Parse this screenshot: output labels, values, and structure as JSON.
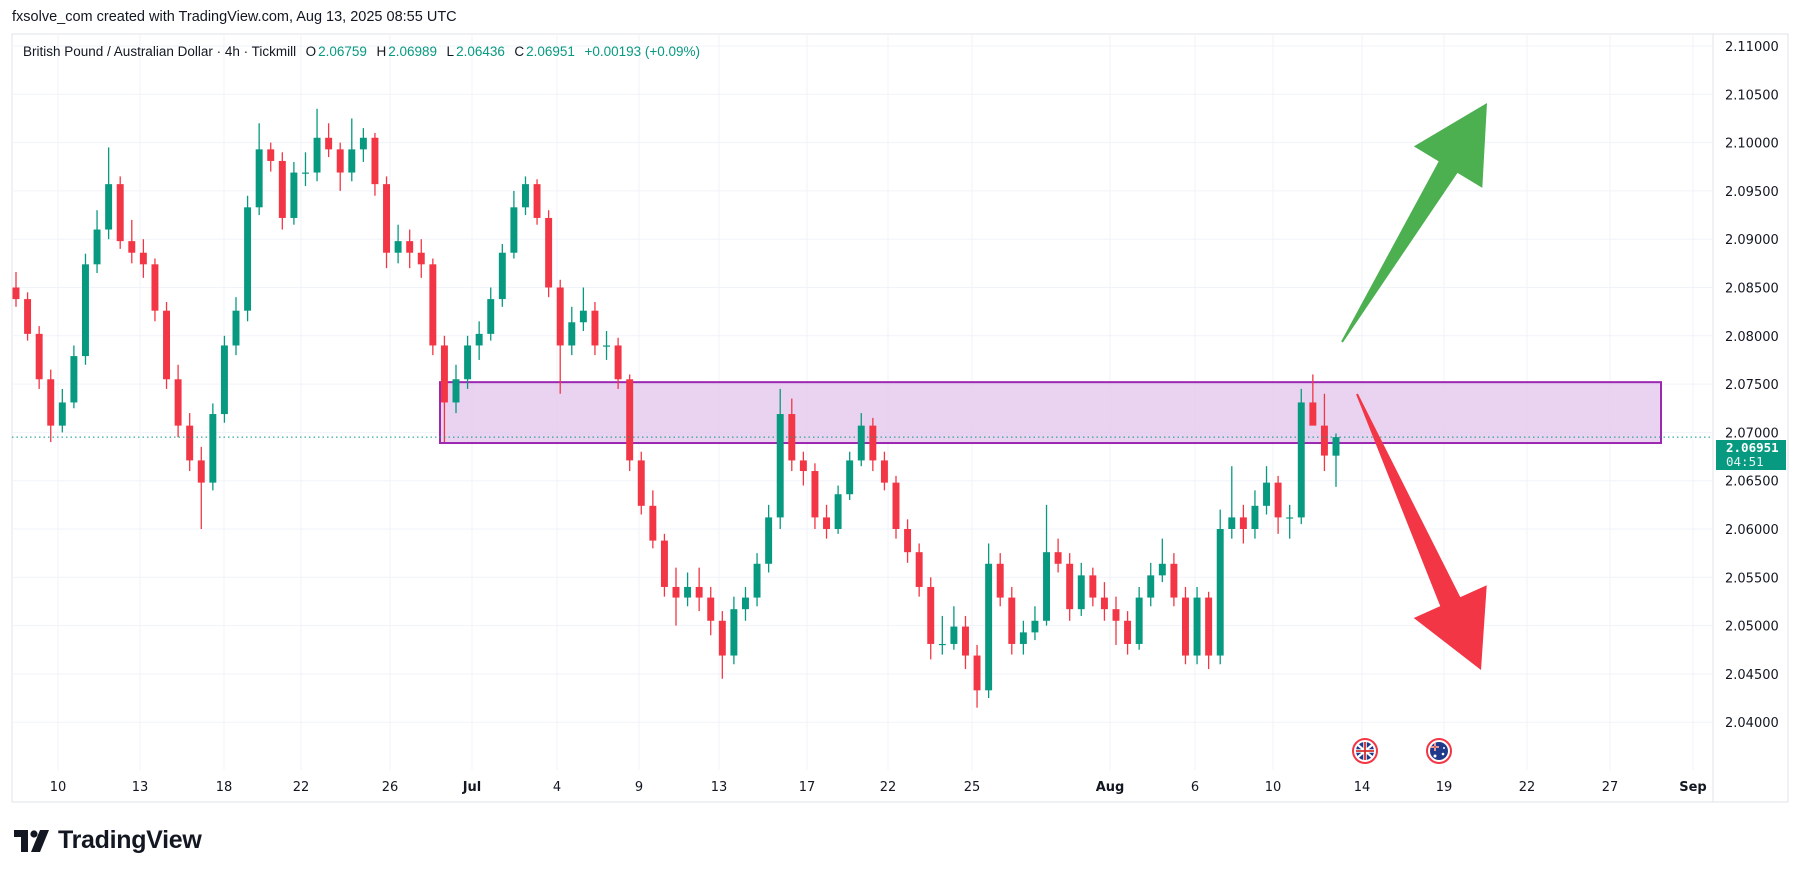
{
  "header": {
    "attribution": "fxsolve_com created with TradingView.com, Aug 13, 2025 08:55 UTC"
  },
  "legend": {
    "symbol": "British Pound / Australian Dollar · 4h · Tickmill",
    "o_label": "O",
    "o": "2.06759",
    "h_label": "H",
    "h": "2.06989",
    "l_label": "L",
    "l": "2.06436",
    "c_label": "C",
    "c": "2.06951",
    "change": "+0.00193 (+0.09%)"
  },
  "price_badge": {
    "price": "2.06951",
    "countdown": "04:51"
  },
  "logo": {
    "text": "TradingView"
  },
  "colors": {
    "up": "#089981",
    "down": "#f23645",
    "zone_fill": "#e1c4ec",
    "zone_border": "#9c27b0",
    "arrow_up": "#4caf50",
    "arrow_down": "#f23645",
    "grid": "#f0f3fa"
  },
  "chart_data": {
    "type": "candlestick",
    "title": "British Pound / Australian Dollar · 4h · Tickmill",
    "ylim": [
      2.036,
      2.112
    ],
    "y_ticks": [
      "2.11000",
      "2.10500",
      "2.10000",
      "2.09500",
      "2.09000",
      "2.08500",
      "2.08000",
      "2.07500",
      "2.07000",
      "2.06500",
      "2.06000",
      "2.05500",
      "2.05000",
      "2.04500",
      "2.04000"
    ],
    "x_ticks": [
      {
        "label": "10",
        "bold": false
      },
      {
        "label": "13",
        "bold": false
      },
      {
        "label": "18",
        "bold": false
      },
      {
        "label": "22",
        "bold": false
      },
      {
        "label": "26",
        "bold": false
      },
      {
        "label": "Jul",
        "bold": true
      },
      {
        "label": "4",
        "bold": false
      },
      {
        "label": "9",
        "bold": false
      },
      {
        "label": "13",
        "bold": false
      },
      {
        "label": "17",
        "bold": false
      },
      {
        "label": "22",
        "bold": false
      },
      {
        "label": "25",
        "bold": false
      },
      {
        "label": "Aug",
        "bold": true
      },
      {
        "label": "6",
        "bold": false
      },
      {
        "label": "10",
        "bold": false
      },
      {
        "label": "14",
        "bold": false
      },
      {
        "label": "19",
        "bold": false
      },
      {
        "label": "22",
        "bold": false
      },
      {
        "label": "27",
        "bold": false
      },
      {
        "label": "Sep",
        "bold": true
      }
    ],
    "grid": true,
    "last_price": 2.06951,
    "resistance_zone": {
      "top": 2.0752,
      "bottom": 2.0689
    },
    "annotations": [
      "green up arrow (bullish scenario)",
      "red down arrow (bearish scenario)"
    ],
    "events": [
      "GBP flag",
      "AUD flag"
    ],
    "candles": [
      [
        2.085,
        2.0866,
        2.083,
        2.0838
      ],
      [
        2.0838,
        2.0845,
        2.0795,
        2.0802
      ],
      [
        2.0802,
        2.081,
        2.0745,
        2.0755
      ],
      [
        2.0755,
        2.0765,
        2.069,
        2.0707
      ],
      [
        2.0707,
        2.0745,
        2.07,
        2.0731
      ],
      [
        2.0731,
        2.079,
        2.0725,
        2.0779
      ],
      [
        2.0779,
        2.0885,
        2.077,
        2.0874
      ],
      [
        2.0874,
        2.093,
        2.0865,
        2.091
      ],
      [
        2.091,
        2.0995,
        2.09,
        2.0957
      ],
      [
        2.0957,
        2.0965,
        2.089,
        2.0898
      ],
      [
        2.0898,
        2.092,
        2.0875,
        2.0886
      ],
      [
        2.0886,
        2.09,
        2.086,
        2.0874
      ],
      [
        2.0874,
        2.088,
        2.0815,
        2.0826
      ],
      [
        2.0826,
        2.0835,
        2.0745,
        2.0755
      ],
      [
        2.0755,
        2.077,
        2.0695,
        2.0707
      ],
      [
        2.0707,
        2.072,
        2.066,
        2.0671
      ],
      [
        2.0671,
        2.0685,
        2.06,
        2.0648
      ],
      [
        2.0648,
        2.073,
        2.064,
        2.0719
      ],
      [
        2.0719,
        2.08,
        2.071,
        2.079
      ],
      [
        2.079,
        2.084,
        2.078,
        2.0826
      ],
      [
        2.0826,
        2.0945,
        2.0815,
        2.0933
      ],
      [
        2.0933,
        2.102,
        2.0925,
        2.0993
      ],
      [
        2.0993,
        2.1,
        2.097,
        2.0981
      ],
      [
        2.0981,
        2.099,
        2.091,
        2.0922
      ],
      [
        2.0922,
        2.098,
        2.0915,
        2.0969
      ],
      [
        2.0969,
        2.099,
        2.0955,
        2.0969
      ],
      [
        2.0969,
        2.1035,
        2.096,
        2.1005
      ],
      [
        2.1005,
        2.102,
        2.0985,
        2.0993
      ],
      [
        2.0993,
        2.1,
        2.095,
        2.0969
      ],
      [
        2.0969,
        2.1025,
        2.096,
        2.0993
      ],
      [
        2.0993,
        2.1015,
        2.098,
        2.1005
      ],
      [
        2.1005,
        2.101,
        2.0945,
        2.0957
      ],
      [
        2.0957,
        2.0965,
        2.087,
        2.0886
      ],
      [
        2.0886,
        2.0915,
        2.0875,
        2.0898
      ],
      [
        2.0898,
        2.091,
        2.087,
        2.0886
      ],
      [
        2.0886,
        2.09,
        2.086,
        2.0874
      ],
      [
        2.0874,
        2.088,
        2.078,
        2.079
      ],
      [
        2.079,
        2.08,
        2.069,
        2.0731
      ],
      [
        2.0731,
        2.077,
        2.072,
        2.0755
      ],
      [
        2.0755,
        2.08,
        2.0745,
        2.079
      ],
      [
        2.079,
        2.0815,
        2.0775,
        2.0802
      ],
      [
        2.0802,
        2.085,
        2.0795,
        2.0838
      ],
      [
        2.0838,
        2.0895,
        2.083,
        2.0886
      ],
      [
        2.0886,
        2.095,
        2.088,
        2.0933
      ],
      [
        2.0933,
        2.0965,
        2.0925,
        2.0957
      ],
      [
        2.0957,
        2.0962,
        2.0915,
        2.0922
      ],
      [
        2.0922,
        2.093,
        2.084,
        2.085
      ],
      [
        2.085,
        2.0858,
        2.074,
        2.079
      ],
      [
        2.079,
        2.083,
        2.078,
        2.0814
      ],
      [
        2.0814,
        2.085,
        2.0805,
        2.0826
      ],
      [
        2.0826,
        2.0835,
        2.078,
        2.079
      ],
      [
        2.079,
        2.0805,
        2.0775,
        2.079
      ],
      [
        2.079,
        2.0798,
        2.0745,
        2.0755
      ],
      [
        2.0755,
        2.076,
        2.066,
        2.0671
      ],
      [
        2.0671,
        2.068,
        2.0615,
        2.0624
      ],
      [
        2.0624,
        2.064,
        2.058,
        2.0588
      ],
      [
        2.0588,
        2.0595,
        2.053,
        2.054
      ],
      [
        2.054,
        2.056,
        2.05,
        2.0529
      ],
      [
        2.0529,
        2.0555,
        2.052,
        2.054
      ],
      [
        2.054,
        2.056,
        2.0515,
        2.0529
      ],
      [
        2.0529,
        2.054,
        2.049,
        2.0505
      ],
      [
        2.0505,
        2.0515,
        2.0445,
        2.0469
      ],
      [
        2.0469,
        2.053,
        2.046,
        2.0517
      ],
      [
        2.0517,
        2.054,
        2.0505,
        2.0529
      ],
      [
        2.0529,
        2.0575,
        2.052,
        2.0564
      ],
      [
        2.0564,
        2.0625,
        2.0555,
        2.0612
      ],
      [
        2.0612,
        2.0745,
        2.06,
        2.0719
      ],
      [
        2.0719,
        2.0735,
        2.066,
        2.0671
      ],
      [
        2.0671,
        2.068,
        2.0645,
        2.066
      ],
      [
        2.066,
        2.0668,
        2.06,
        2.0612
      ],
      [
        2.0612,
        2.0625,
        2.059,
        2.06
      ],
      [
        2.06,
        2.0645,
        2.0595,
        2.0636
      ],
      [
        2.0636,
        2.068,
        2.063,
        2.0671
      ],
      [
        2.0671,
        2.072,
        2.0665,
        2.0707
      ],
      [
        2.0707,
        2.0715,
        2.066,
        2.0671
      ],
      [
        2.0671,
        2.068,
        2.064,
        2.0648
      ],
      [
        2.0648,
        2.0655,
        2.059,
        2.06
      ],
      [
        2.06,
        2.061,
        2.0565,
        2.0576
      ],
      [
        2.0576,
        2.0585,
        2.053,
        2.054
      ],
      [
        2.054,
        2.055,
        2.0465,
        2.0481
      ],
      [
        2.0481,
        2.051,
        2.047,
        2.0481
      ],
      [
        2.0481,
        2.052,
        2.0475,
        2.0499
      ],
      [
        2.0499,
        2.051,
        2.0455,
        2.0469
      ],
      [
        2.0469,
        2.048,
        2.0415,
        2.0433
      ],
      [
        2.0433,
        2.0585,
        2.0425,
        2.0564
      ],
      [
        2.0564,
        2.0575,
        2.052,
        2.0529
      ],
      [
        2.0529,
        2.054,
        2.047,
        2.0481
      ],
      [
        2.0481,
        2.0505,
        2.047,
        2.0493
      ],
      [
        2.0493,
        2.052,
        2.0485,
        2.0505
      ],
      [
        2.0505,
        2.0625,
        2.05,
        2.0576
      ],
      [
        2.0576,
        2.059,
        2.0555,
        2.0564
      ],
      [
        2.0564,
        2.0575,
        2.0505,
        2.0517
      ],
      [
        2.0517,
        2.0565,
        2.051,
        2.0552
      ],
      [
        2.0552,
        2.056,
        2.052,
        2.0529
      ],
      [
        2.0529,
        2.0545,
        2.0505,
        2.0517
      ],
      [
        2.0517,
        2.053,
        2.048,
        2.0505
      ],
      [
        2.0505,
        2.0515,
        2.047,
        2.0481
      ],
      [
        2.0481,
        2.054,
        2.0475,
        2.0529
      ],
      [
        2.0529,
        2.0565,
        2.052,
        2.0552
      ],
      [
        2.0552,
        2.059,
        2.0545,
        2.0564
      ],
      [
        2.0564,
        2.0575,
        2.052,
        2.0529
      ],
      [
        2.0529,
        2.054,
        2.046,
        2.0469
      ],
      [
        2.0469,
        2.054,
        2.046,
        2.0529
      ],
      [
        2.0529,
        2.0535,
        2.0455,
        2.0469
      ],
      [
        2.0469,
        2.062,
        2.046,
        2.06
      ],
      [
        2.06,
        2.0665,
        2.059,
        2.0612
      ],
      [
        2.0612,
        2.0625,
        2.0585,
        2.06
      ],
      [
        2.06,
        2.064,
        2.059,
        2.0624
      ],
      [
        2.0624,
        2.0665,
        2.0615,
        2.0648
      ],
      [
        2.0648,
        2.0655,
        2.0595,
        2.0612
      ],
      [
        2.0612,
        2.0625,
        2.059,
        2.0612
      ],
      [
        2.0612,
        2.0745,
        2.0605,
        2.0731
      ],
      [
        2.0731,
        2.076,
        2.071,
        2.0707
      ],
      [
        2.0707,
        2.074,
        2.066,
        2.0676
      ],
      [
        2.06759,
        2.06989,
        2.06436,
        2.06951
      ]
    ]
  }
}
